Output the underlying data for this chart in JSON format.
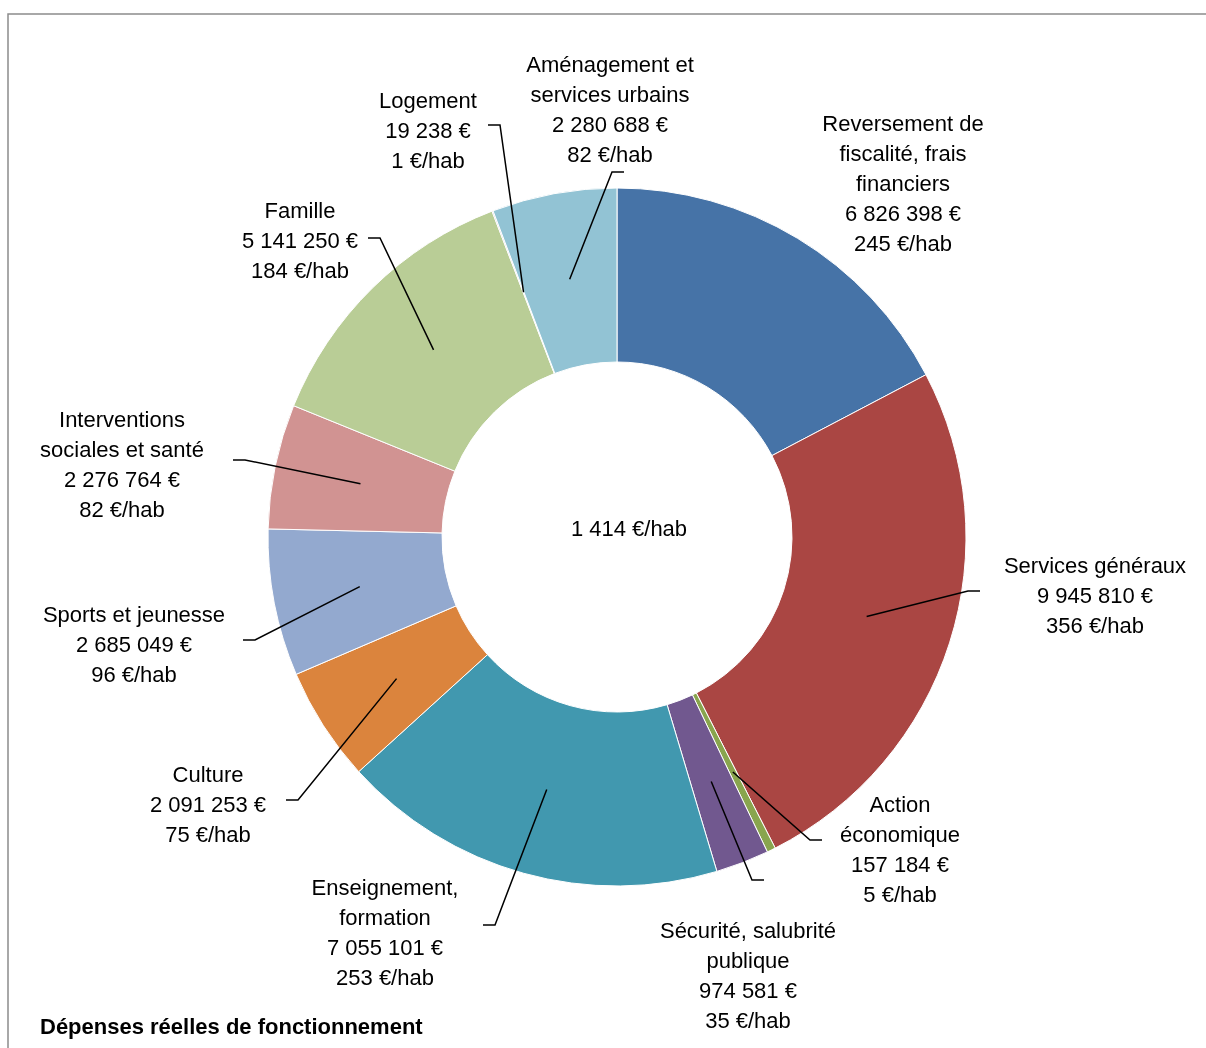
{
  "chart_data": {
    "type": "donut",
    "title": "Dépenses réelles de fonctionnement",
    "annotations": [
      "1 414 €/hab"
    ],
    "categories": [
      "Reversement de fiscalité, frais financiers",
      "Services généraux",
      "Action économique",
      "Sécurité, salubrité publique",
      "Enseignement, formation",
      "Culture",
      "Sports et jeunesse",
      "Interventions sociales et santé",
      "Famille",
      "Logement",
      "Aménagement et services urbains"
    ],
    "values": [
      6826398,
      9945810,
      157184,
      974581,
      7055101,
      2091253,
      2685049,
      2276764,
      5141250,
      19238,
      2280688
    ],
    "value_labels": [
      "6 826 398 €\n245 €/hab",
      "9 945 810 €\n356 €/hab",
      "157 184 €\n5 €/hab",
      "974 581 €\n35 €/hab",
      "7 055 101 €\n253 €/hab",
      "2 091 253 €\n75 €/hab",
      "2 685 049 €\n96 €/hab",
      "2 276 764 €\n82 €/hab",
      "5 141 250 €\n184 €/hab",
      "19 238 €\n1 €/hab",
      "2 280 688 €\n82 €/hab"
    ],
    "colors": [
      "#4673a7",
      "#aa4643",
      "#89a54e",
      "#71588f",
      "#4198af",
      "#db843d",
      "#93a9cf",
      "#d19392",
      "#b9cd96",
      "#a99bbd",
      "#92c3d4"
    ]
  }
}
